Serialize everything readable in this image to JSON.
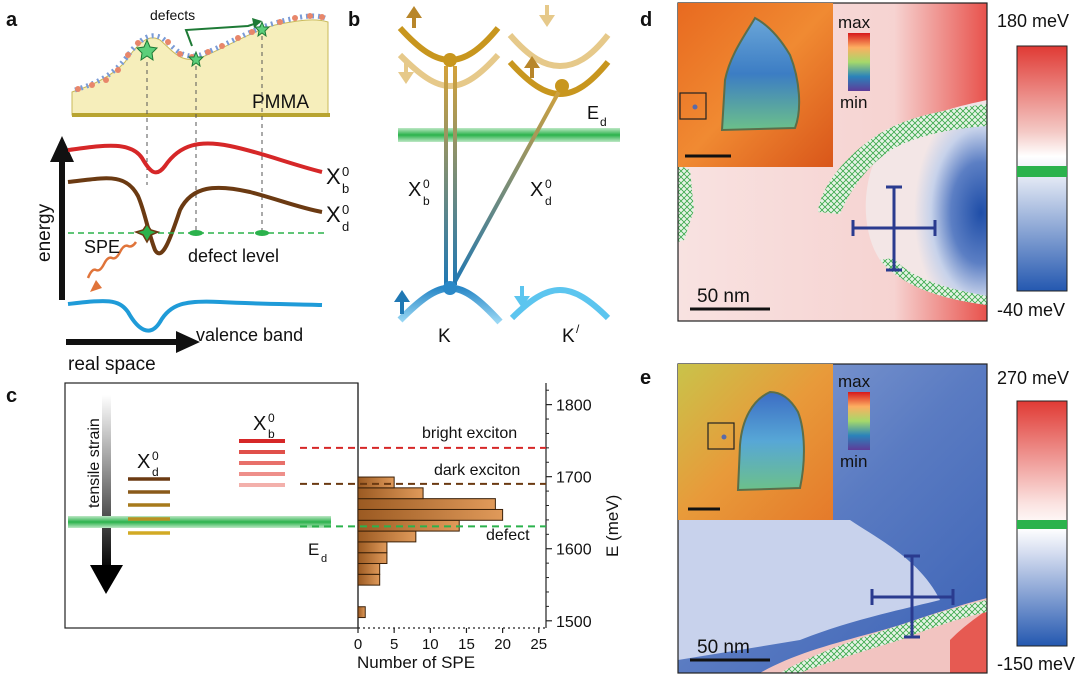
{
  "panel_labels": {
    "a": "a",
    "b": "b",
    "c": "c",
    "d": "d",
    "e": "e"
  },
  "panel_a": {
    "defects": "defects",
    "pmma": "PMMA",
    "xb_main": "X",
    "xb_sup": "0",
    "xb_sub": "b",
    "xd_main": "X",
    "xd_sup": "0",
    "xd_sub": "d",
    "spe": "SPE",
    "defect_level": "defect level",
    "valence_band": "valence band",
    "energy": "energy",
    "real_space": "real space"
  },
  "panel_b": {
    "ed_main": "E",
    "ed_sub": "d",
    "xb_main": "X",
    "xb_sup": "0",
    "xb_sub": "b",
    "xd_main": "X",
    "xd_sup": "0",
    "xd_sub": "d",
    "k": "K",
    "kprime_main": "K",
    "kprime_sup": "/"
  },
  "panel_c": {
    "tensile_strain": "tensile strain",
    "xd_main": "X",
    "xd_sup": "0",
    "xd_sub": "d",
    "xb_main": "X",
    "xb_sup": "0",
    "xb_sub": "b",
    "ed_main": "E",
    "ed_sub": "d",
    "bright_exciton": "bright exciton",
    "dark_exciton": "dark exciton",
    "defect": "defect",
    "y_axis_label": "E (meV)",
    "x_axis_label": "Number of SPE",
    "y_ticks": [
      "1800",
      "1700",
      "1600",
      "1500"
    ],
    "x_ticks": [
      "0",
      "5",
      "10",
      "15",
      "20",
      "25"
    ]
  },
  "panel_d": {
    "inset_max": "max",
    "inset_min": "min",
    "scale_bar": "50 nm",
    "cbar_top": "180 meV",
    "cbar_bottom": "-40 meV"
  },
  "panel_e": {
    "inset_max": "max",
    "inset_min": "min",
    "scale_bar": "50 nm",
    "cbar_top": "270 meV",
    "cbar_bottom": "-150 meV"
  },
  "chart_data": {
    "type": "bar",
    "orientation": "horizontal",
    "xlabel": "Number of SPE",
    "ylabel": "E (meV)",
    "xlim": [
      0,
      26
    ],
    "ylim": [
      1490,
      1830
    ],
    "bin_width_meV": 15,
    "bins": [
      {
        "center": 1512,
        "count": 1
      },
      {
        "center": 1557,
        "count": 3
      },
      {
        "center": 1572,
        "count": 3
      },
      {
        "center": 1587,
        "count": 4
      },
      {
        "center": 1602,
        "count": 4
      },
      {
        "center": 1617,
        "count": 8
      },
      {
        "center": 1632,
        "count": 14
      },
      {
        "center": 1647,
        "count": 20
      },
      {
        "center": 1662,
        "count": 19
      },
      {
        "center": 1677,
        "count": 9
      },
      {
        "center": 1692,
        "count": 5
      }
    ],
    "reference_lines": [
      {
        "label": "bright exciton",
        "value": 1740,
        "color": "#d62728"
      },
      {
        "label": "dark exciton",
        "value": 1690,
        "color": "#6b3a12"
      },
      {
        "label": "defect",
        "value": 1631,
        "color": "#2bb24c"
      }
    ]
  },
  "colors": {
    "bright": "#d62728",
    "dark": "#6b3a12",
    "valence": "#1f9bd8",
    "defect_green": "#2bb24c",
    "gold": "#c8961e",
    "navy": "#2a3b8f"
  }
}
